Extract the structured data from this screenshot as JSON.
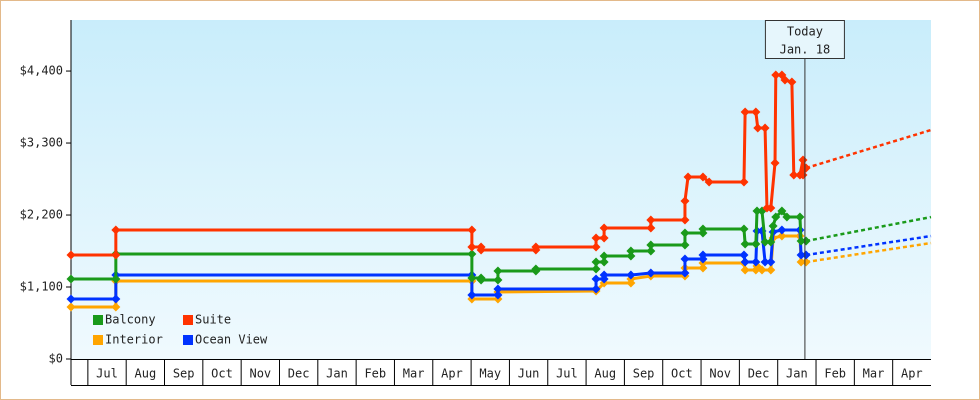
{
  "chart_data": {
    "type": "line",
    "xlim": [
      -0.44,
      22
    ],
    "ylim": [
      0,
      5180
    ],
    "yticks": [
      {
        "value": 0,
        "label": "$0"
      },
      {
        "value": 1100,
        "label": "$1,100"
      },
      {
        "value": 2200,
        "label": "$2,200"
      },
      {
        "value": 3300,
        "label": "$3,300"
      },
      {
        "value": 4400,
        "label": "$4,400"
      }
    ],
    "xticks": [
      {
        "value": 0.5,
        "label": "Jul"
      },
      {
        "value": 1.5,
        "label": "Aug"
      },
      {
        "value": 2.5,
        "label": "Sep"
      },
      {
        "value": 3.5,
        "label": "Oct"
      },
      {
        "value": 4.5,
        "label": "Nov"
      },
      {
        "value": 5.5,
        "label": "Dec"
      },
      {
        "value": 6.5,
        "label": "Jan"
      },
      {
        "value": 7.5,
        "label": "Feb"
      },
      {
        "value": 8.5,
        "label": "Mar"
      },
      {
        "value": 9.5,
        "label": "Apr"
      },
      {
        "value": 10.5,
        "label": "May"
      },
      {
        "value": 11.5,
        "label": "Jun"
      },
      {
        "value": 12.5,
        "label": "Jul"
      },
      {
        "value": 13.5,
        "label": "Aug"
      },
      {
        "value": 14.5,
        "label": "Sep"
      },
      {
        "value": 15.5,
        "label": "Oct"
      },
      {
        "value": 16.5,
        "label": "Nov"
      },
      {
        "value": 17.5,
        "label": "Dec"
      },
      {
        "value": 18.5,
        "label": "Jan"
      },
      {
        "value": 19.5,
        "label": "Feb"
      },
      {
        "value": 20.5,
        "label": "Mar"
      },
      {
        "value": 21.5,
        "label": "Apr"
      }
    ],
    "today": {
      "x": 18.71,
      "text": [
        "Today",
        "Jan. 18"
      ]
    },
    "series": [
      {
        "name": "Balcony",
        "color": "#1a9a1a",
        "x": [
          -0.44,
          0.73,
          0.73,
          10.02,
          10.02,
          10.26,
          10.26,
          10.7,
          10.7,
          11.69,
          11.69,
          13.26,
          13.26,
          13.47,
          13.47,
          14.17,
          14.17,
          14.69,
          14.69,
          15.58,
          15.58,
          16.05,
          16.05,
          17.12,
          17.15,
          17.43,
          17.46,
          17.59,
          17.67,
          17.82,
          17.88,
          17.95,
          18.11,
          18.24,
          18.58,
          18.61,
          18.74
        ],
        "values": [
          1222,
          1222,
          1604,
          1604,
          1237,
          1237,
          1207,
          1207,
          1344,
          1344,
          1375,
          1375,
          1482,
          1482,
          1573,
          1573,
          1650,
          1650,
          1742,
          1742,
          1925,
          1925,
          1986,
          1986,
          1757,
          1757,
          2261,
          2261,
          1788,
          1788,
          2032,
          2169,
          2261,
          2169,
          2169,
          1803,
          1803
        ],
        "forecast": {
          "x": 22,
          "value": 2169
        }
      },
      {
        "name": "Suite",
        "color": "#ff3300",
        "x": [
          -0.44,
          0.73,
          0.73,
          10.02,
          10.02,
          10.26,
          10.26,
          11.69,
          11.69,
          13.26,
          13.26,
          13.47,
          13.47,
          14.69,
          14.69,
          15.58,
          15.58,
          15.66,
          16.05,
          16.21,
          17.12,
          17.15,
          17.43,
          17.48,
          17.67,
          17.72,
          17.82,
          17.93,
          17.95,
          18.11,
          18.19,
          18.37,
          18.42,
          18.58,
          18.66,
          18.66,
          18.74
        ],
        "values": [
          1589,
          1589,
          1971,
          1971,
          1711,
          1711,
          1665,
          1665,
          1711,
          1711,
          1849,
          1849,
          2001,
          2001,
          2124,
          2124,
          2414,
          2781,
          2781,
          2704,
          2704,
          3774,
          3774,
          3529,
          3529,
          2307,
          2307,
          2995,
          4339,
          4339,
          4263,
          4232,
          2811,
          2811,
          3040,
          2811,
          2918
        ],
        "forecast": {
          "x": 22,
          "value": 3499
        }
      },
      {
        "name": "Interior",
        "color": "#ffa500",
        "x": [
          -0.44,
          0.73,
          0.73,
          10.02,
          10.02,
          10.7,
          10.7,
          13.26,
          13.47,
          14.17,
          14.17,
          14.69,
          15.58,
          15.58,
          16.05,
          16.05,
          17.12,
          17.15,
          17.43,
          17.46,
          17.59,
          17.82,
          17.88,
          18.11,
          18.58,
          18.61,
          18.74
        ],
        "values": [
          795,
          795,
          1192,
          1192,
          917,
          917,
          1024,
          1039,
          1161,
          1161,
          1222,
          1268,
          1268,
          1390,
          1390,
          1467,
          1467,
          1360,
          1360,
          1421,
          1360,
          1360,
          1849,
          1879,
          1879,
          1482,
          1482
        ],
        "forecast": {
          "x": 22,
          "value": 1772
        }
      },
      {
        "name": "Ocean View",
        "color": "#0033ff",
        "x": [
          -0.44,
          0.73,
          0.73,
          10.02,
          10.02,
          10.7,
          10.7,
          13.26,
          13.26,
          13.47,
          13.47,
          14.17,
          14.69,
          15.58,
          15.58,
          16.05,
          16.05,
          17.12,
          17.15,
          17.43,
          17.46,
          17.59,
          17.67,
          17.82,
          17.88,
          18.11,
          18.58,
          18.61,
          18.74
        ],
        "values": [
          917,
          917,
          1283,
          1283,
          978,
          978,
          1070,
          1070,
          1222,
          1222,
          1283,
          1283,
          1314,
          1314,
          1528,
          1528,
          1589,
          1589,
          1482,
          1482,
          1956,
          1956,
          1482,
          1482,
          1941,
          1971,
          1971,
          1589,
          1589
        ],
        "forecast": {
          "x": 22,
          "value": 1879
        }
      }
    ]
  }
}
